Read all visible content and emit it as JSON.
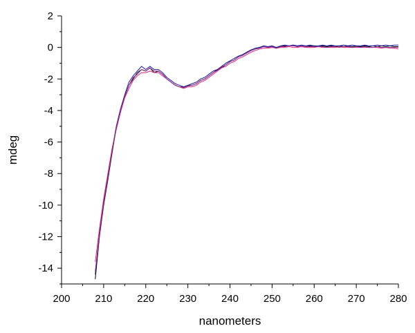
{
  "chart_data": {
    "type": "line",
    "xlabel": "nanometers",
    "ylabel": "mdeg",
    "xlim": [
      200,
      280
    ],
    "ylim": [
      -15,
      2
    ],
    "x_ticks": [
      200,
      210,
      220,
      230,
      240,
      250,
      260,
      270,
      280
    ],
    "y_ticks": [
      2,
      0,
      -2,
      -4,
      -6,
      -8,
      -10,
      -12,
      -14
    ],
    "grid": false,
    "legend": "none",
    "series": [
      {
        "color": "#000000",
        "x": [
          208,
          209,
          210,
          211,
          212,
          213,
          214,
          215,
          216,
          217,
          218,
          219,
          220,
          221,
          222,
          223,
          224,
          225,
          226,
          227,
          228,
          229,
          230,
          231,
          232,
          233,
          234,
          235,
          236,
          237,
          238,
          239,
          240,
          241,
          242,
          243,
          244,
          245,
          246,
          247,
          248,
          249,
          250,
          251,
          252,
          253,
          254,
          255,
          256,
          257,
          258,
          259,
          260,
          261,
          262,
          263,
          264,
          265,
          266,
          267,
          268,
          269,
          270,
          271,
          272,
          273,
          274,
          275,
          276,
          277,
          278,
          279,
          280
        ],
        "values": [
          -14.7,
          -12.0,
          -10.0,
          -8.4,
          -6.7,
          -5.1,
          -4.1,
          -3.1,
          -2.4,
          -2.0,
          -1.6,
          -1.4,
          -1.5,
          -1.3,
          -1.6,
          -1.5,
          -1.7,
          -2.0,
          -2.2,
          -2.4,
          -2.5,
          -2.5,
          -2.4,
          -2.4,
          -2.3,
          -2.1,
          -2.0,
          -1.8,
          -1.6,
          -1.4,
          -1.3,
          -1.1,
          -0.9,
          -0.8,
          -0.6,
          -0.5,
          -0.3,
          -0.2,
          -0.1,
          0.0,
          0.05,
          0.0,
          0.1,
          -0.05,
          0.05,
          0.1,
          0.1,
          0.15,
          0.1,
          0.1,
          0.05,
          0.1,
          0.1,
          0.05,
          0.1,
          0.05,
          0.1,
          0.05,
          0.1,
          0.05,
          0.1,
          0.05,
          0.1,
          0.05,
          0.1,
          0.05,
          0.1,
          0.05,
          0.1,
          0.05,
          0.1,
          0.05,
          0.05
        ]
      },
      {
        "color": "#1a1aa6",
        "x": [
          208,
          209,
          210,
          211,
          212,
          213,
          214,
          215,
          216,
          217,
          218,
          219,
          220,
          221,
          222,
          223,
          224,
          225,
          226,
          227,
          228,
          229,
          230,
          231,
          232,
          233,
          234,
          235,
          236,
          237,
          238,
          239,
          240,
          241,
          242,
          243,
          244,
          245,
          246,
          247,
          248,
          249,
          250,
          251,
          252,
          253,
          254,
          255,
          256,
          257,
          258,
          259,
          260,
          261,
          262,
          263,
          264,
          265,
          266,
          267,
          268,
          269,
          270,
          271,
          272,
          273,
          274,
          275,
          276,
          277,
          278,
          279,
          280
        ],
        "values": [
          -14.4,
          -11.8,
          -9.8,
          -8.2,
          -6.5,
          -5.0,
          -3.9,
          -3.0,
          -2.2,
          -1.8,
          -1.5,
          -1.2,
          -1.4,
          -1.2,
          -1.4,
          -1.4,
          -1.6,
          -1.9,
          -2.1,
          -2.3,
          -2.4,
          -2.5,
          -2.4,
          -2.3,
          -2.2,
          -2.0,
          -1.9,
          -1.7,
          -1.5,
          -1.4,
          -1.2,
          -1.0,
          -0.85,
          -0.7,
          -0.55,
          -0.45,
          -0.3,
          -0.15,
          -0.05,
          0.0,
          0.1,
          0.05,
          0.1,
          0.0,
          0.1,
          0.15,
          0.1,
          0.15,
          0.1,
          0.15,
          0.1,
          0.15,
          0.1,
          0.1,
          0.15,
          0.1,
          0.15,
          0.1,
          0.1,
          0.15,
          0.1,
          0.15,
          0.1,
          0.1,
          0.15,
          0.1,
          0.1,
          0.15,
          0.1,
          0.15,
          0.1,
          0.15,
          0.15
        ]
      },
      {
        "color": "#e0207a",
        "x": [
          208,
          209,
          210,
          211,
          212,
          213,
          214,
          215,
          216,
          217,
          218,
          219,
          220,
          221,
          222,
          223,
          224,
          225,
          226,
          227,
          228,
          229,
          230,
          231,
          232,
          233,
          234,
          235,
          236,
          237,
          238,
          239,
          240,
          241,
          242,
          243,
          244,
          245,
          246,
          247,
          248,
          249,
          250,
          251,
          252,
          253,
          254,
          255,
          256,
          257,
          258,
          259,
          260,
          261,
          262,
          263,
          264,
          265,
          266,
          267,
          268,
          269,
          270,
          271,
          272,
          273,
          274,
          275,
          276,
          277,
          278,
          279,
          280
        ],
        "values": [
          -13.6,
          -11.5,
          -9.6,
          -8.0,
          -6.4,
          -5.2,
          -4.1,
          -3.2,
          -2.6,
          -2.1,
          -1.8,
          -1.6,
          -1.6,
          -1.5,
          -1.6,
          -1.6,
          -1.8,
          -2.0,
          -2.2,
          -2.4,
          -2.5,
          -2.6,
          -2.5,
          -2.5,
          -2.4,
          -2.2,
          -2.1,
          -1.9,
          -1.7,
          -1.5,
          -1.3,
          -1.2,
          -1.0,
          -0.9,
          -0.7,
          -0.6,
          -0.45,
          -0.3,
          -0.2,
          -0.1,
          -0.05,
          -0.05,
          0.0,
          -0.05,
          0.0,
          0.0,
          0.05,
          0.0,
          0.0,
          0.05,
          0.0,
          0.0,
          0.0,
          0.05,
          0.0,
          0.0,
          0.0,
          0.0,
          0.05,
          0.0,
          0.0,
          0.0,
          0.0,
          0.0,
          0.0,
          0.0,
          0.0,
          0.0,
          -0.05,
          0.0,
          -0.05,
          -0.05,
          -0.1
        ]
      },
      {
        "color": "#8a2a8a",
        "x": [
          208,
          209,
          210,
          211,
          212,
          213,
          214,
          215,
          216,
          217,
          218,
          219,
          220,
          221,
          222,
          223,
          224,
          225,
          226,
          227,
          228,
          229,
          230,
          231,
          232,
          233,
          234,
          235,
          236,
          237,
          238,
          239,
          240,
          241,
          242,
          243,
          244,
          245,
          246,
          247,
          248,
          249,
          250,
          251,
          252,
          253,
          254,
          255,
          256,
          257,
          258,
          259,
          260,
          261,
          262,
          263,
          264,
          265,
          266,
          267,
          268,
          269,
          270,
          271,
          272,
          273,
          274,
          275,
          276,
          277,
          278,
          279,
          280
        ],
        "values": [
          -14.2,
          -11.9,
          -9.9,
          -8.3,
          -6.6,
          -5.1,
          -4.0,
          -3.1,
          -2.4,
          -1.9,
          -1.7,
          -1.4,
          -1.5,
          -1.3,
          -1.5,
          -1.5,
          -1.7,
          -2.0,
          -2.2,
          -2.4,
          -2.5,
          -2.55,
          -2.45,
          -2.4,
          -2.3,
          -2.1,
          -2.0,
          -1.8,
          -1.6,
          -1.45,
          -1.25,
          -1.1,
          -0.9,
          -0.8,
          -0.6,
          -0.5,
          -0.35,
          -0.2,
          -0.1,
          -0.05,
          0.05,
          0.0,
          0.05,
          -0.05,
          0.05,
          0.05,
          0.1,
          0.1,
          0.05,
          0.1,
          0.05,
          0.05,
          0.05,
          0.05,
          0.05,
          0.0,
          0.05,
          0.05,
          0.0,
          0.05,
          0.05,
          0.0,
          0.05,
          0.0,
          0.05,
          0.0,
          0.0,
          0.05,
          0.0,
          0.0,
          0.0,
          0.0,
          0.0
        ]
      }
    ]
  }
}
